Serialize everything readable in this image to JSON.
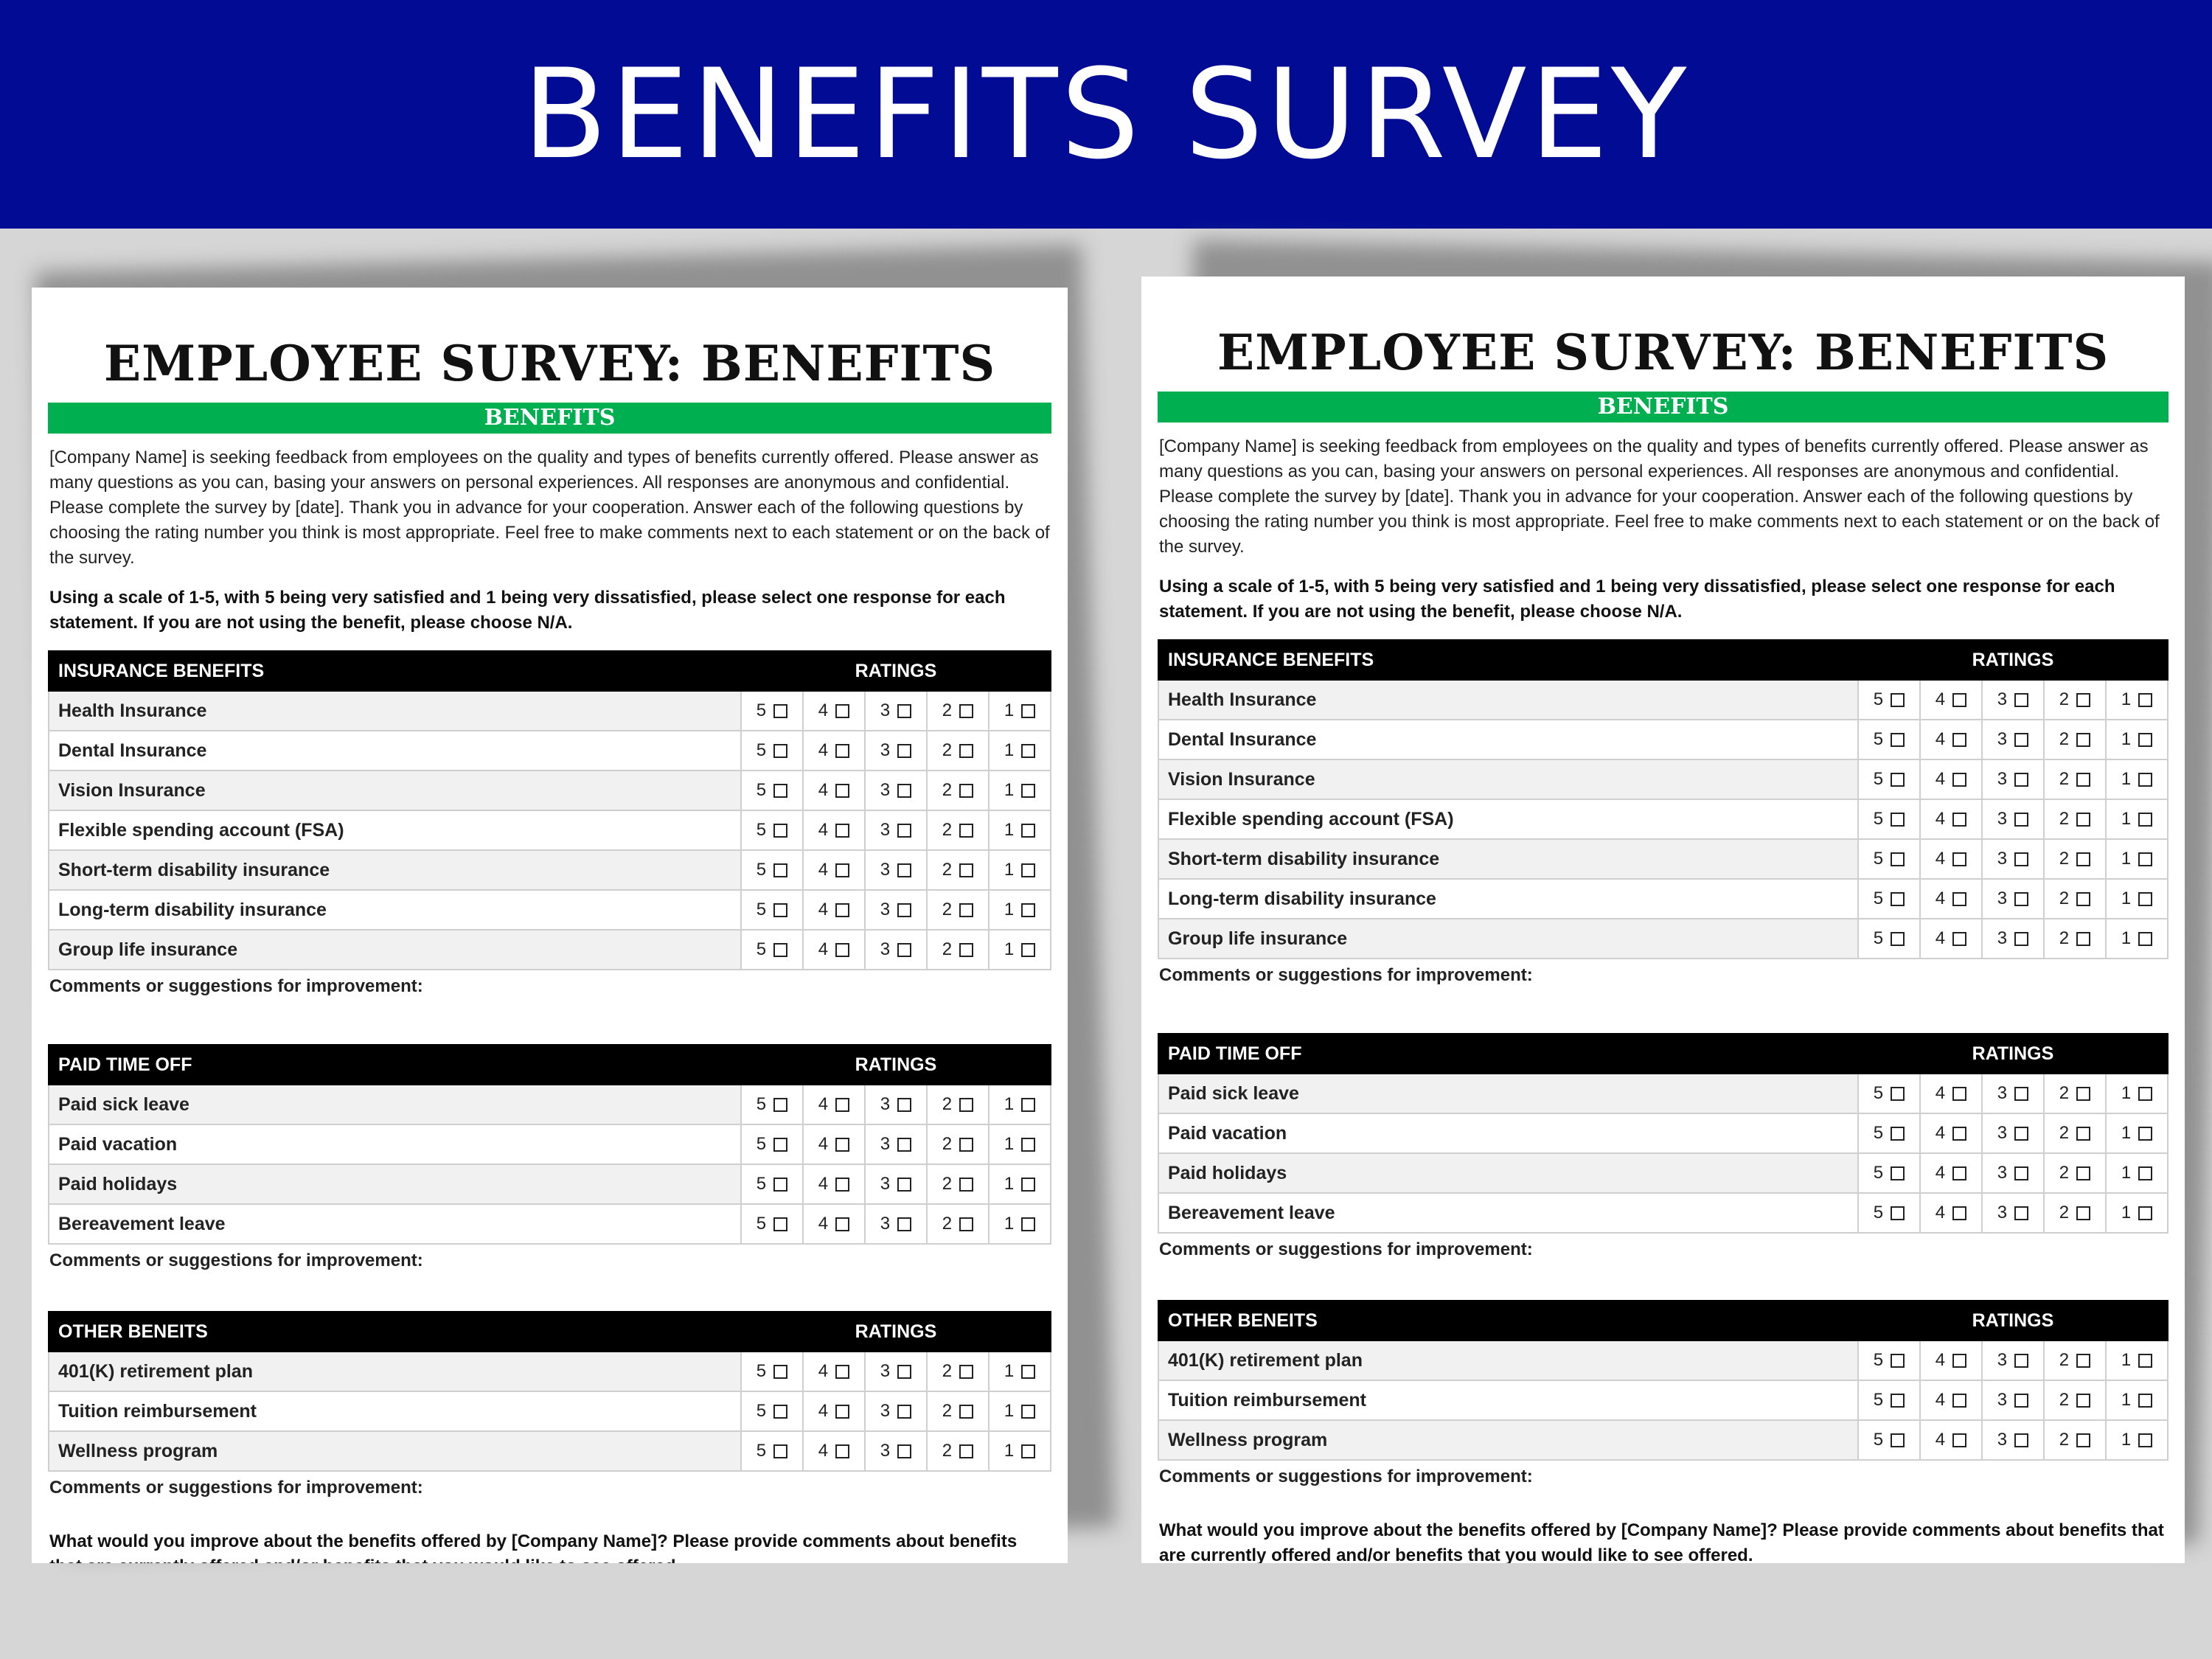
{
  "banner": {
    "title": "BENEFITS SURVEY"
  },
  "survey": {
    "title": "EMPLOYEE SURVEY: BENEFITS",
    "subtitle": "BENEFITS",
    "intro": "[Company Name] is seeking feedback from employees on the quality and types of benefits currently offered. Please answer as many questions as you can, basing your answers on personal experiences. All responses are anonymous and confidential. Please complete the survey by [date]. Thank you in advance for your cooperation. Answer each of the following questions by choosing the rating number you think is most appropriate. Feel free to make comments next to each statement or on the back of the survey.",
    "instructions": "Using a scale of 1-5, with 5 being very satisfied and 1 being very dissatisfied, please select one response for each statement. If you are not using the benefit, please choose N/A.",
    "ratings_header": "RATINGS",
    "rating_options": [
      "5",
      "4",
      "3",
      "2",
      "1"
    ],
    "comments_label": "Comments or suggestions for improvement:",
    "sections": [
      {
        "title": "INSURANCE BENEFITS",
        "items": [
          "Health Insurance",
          "Dental Insurance",
          "Vision Insurance",
          "Flexible spending account (FSA)",
          "Short-term disability insurance",
          "Long-term disability insurance",
          "Group life insurance"
        ]
      },
      {
        "title": "PAID TIME OFF",
        "items": [
          "Paid sick leave",
          "Paid vacation",
          "Paid holidays",
          "Bereavement leave"
        ]
      },
      {
        "title": "OTHER BENEITS",
        "items": [
          "401(K) retirement plan",
          "Tuition reimbursement",
          "Wellness program"
        ]
      }
    ],
    "closing": "What would you improve about the benefits offered by [Company Name]? Please provide comments about benefits that are currently offered and/or benefits that you would like to see offered."
  }
}
